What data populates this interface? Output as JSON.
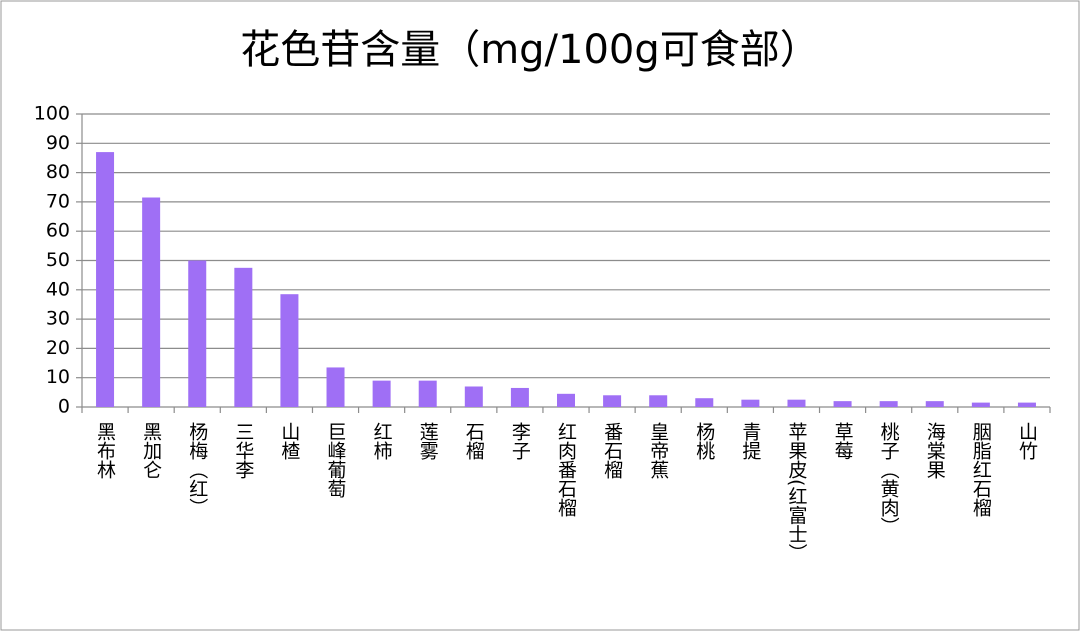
{
  "chart_data": {
    "type": "bar",
    "title": "花色苷含量（mg/100g可食部）",
    "categories": [
      "黑布林",
      "黑加仑",
      "杨梅（红）",
      "三华李",
      "山楂",
      "巨峰葡萄",
      "红柿",
      "莲雾",
      "石榴",
      "李子",
      "红肉番石榴",
      "番石榴",
      "皇帝蕉",
      "杨桃",
      "青提",
      "苹果皮(红富士）",
      "草莓",
      "桃子（黄肉）",
      "海棠果",
      "胭脂红石榴",
      "山竹"
    ],
    "values": [
      87,
      71.5,
      50,
      47.5,
      38.5,
      13.5,
      9,
      9,
      7,
      6.5,
      4.5,
      4,
      4,
      3,
      2.5,
      2.5,
      2,
      2,
      2,
      1.5,
      1.5
    ],
    "color": "#9f6ff5",
    "ylim": [
      0,
      100
    ],
    "yticks": [
      0,
      10,
      20,
      30,
      40,
      50,
      60,
      70,
      80,
      90,
      100
    ],
    "grid": true
  }
}
